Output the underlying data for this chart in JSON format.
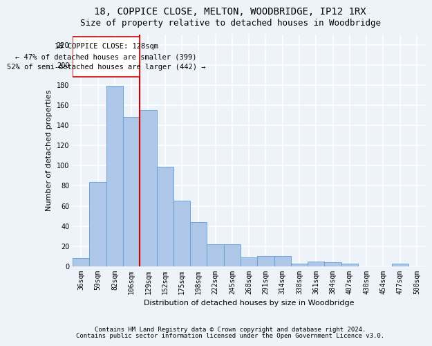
{
  "title": "18, COPPICE CLOSE, MELTON, WOODBRIDGE, IP12 1RX",
  "subtitle": "Size of property relative to detached houses in Woodbridge",
  "xlabel": "Distribution of detached houses by size in Woodbridge",
  "ylabel": "Number of detached properties",
  "categories": [
    "36sqm",
    "59sqm",
    "82sqm",
    "106sqm",
    "129sqm",
    "152sqm",
    "175sqm",
    "198sqm",
    "222sqm",
    "245sqm",
    "268sqm",
    "291sqm",
    "314sqm",
    "338sqm",
    "361sqm",
    "384sqm",
    "407sqm",
    "430sqm",
    "454sqm",
    "477sqm",
    "500sqm"
  ],
  "values": [
    8,
    84,
    179,
    148,
    155,
    99,
    65,
    44,
    22,
    22,
    9,
    10,
    10,
    3,
    5,
    4,
    3,
    0,
    0,
    3,
    0
  ],
  "bar_color": "#aec6e8",
  "bar_edge_color": "#5a9fd4",
  "marker_label": "18 COPPICE CLOSE: 128sqm",
  "annotation_line1": "← 47% of detached houses are smaller (399)",
  "annotation_line2": "52% of semi-detached houses are larger (442) →",
  "vline_color": "#cc0000",
  "box_edge_color": "#cc0000",
  "ylim": [
    0,
    230
  ],
  "yticks": [
    0,
    20,
    40,
    60,
    80,
    100,
    120,
    140,
    160,
    180,
    200,
    220
  ],
  "footnote1": "Contains HM Land Registry data © Crown copyright and database right 2024.",
  "footnote2": "Contains public sector information licensed under the Open Government Licence v3.0.",
  "bg_color": "#eef2f9",
  "grid_color": "#ffffff",
  "title_fontsize": 10,
  "subtitle_fontsize": 9,
  "axis_label_fontsize": 8,
  "tick_fontsize": 7,
  "annotation_fontsize": 7.5,
  "footnote_fontsize": 6.5,
  "vline_x_index": 3.5
}
